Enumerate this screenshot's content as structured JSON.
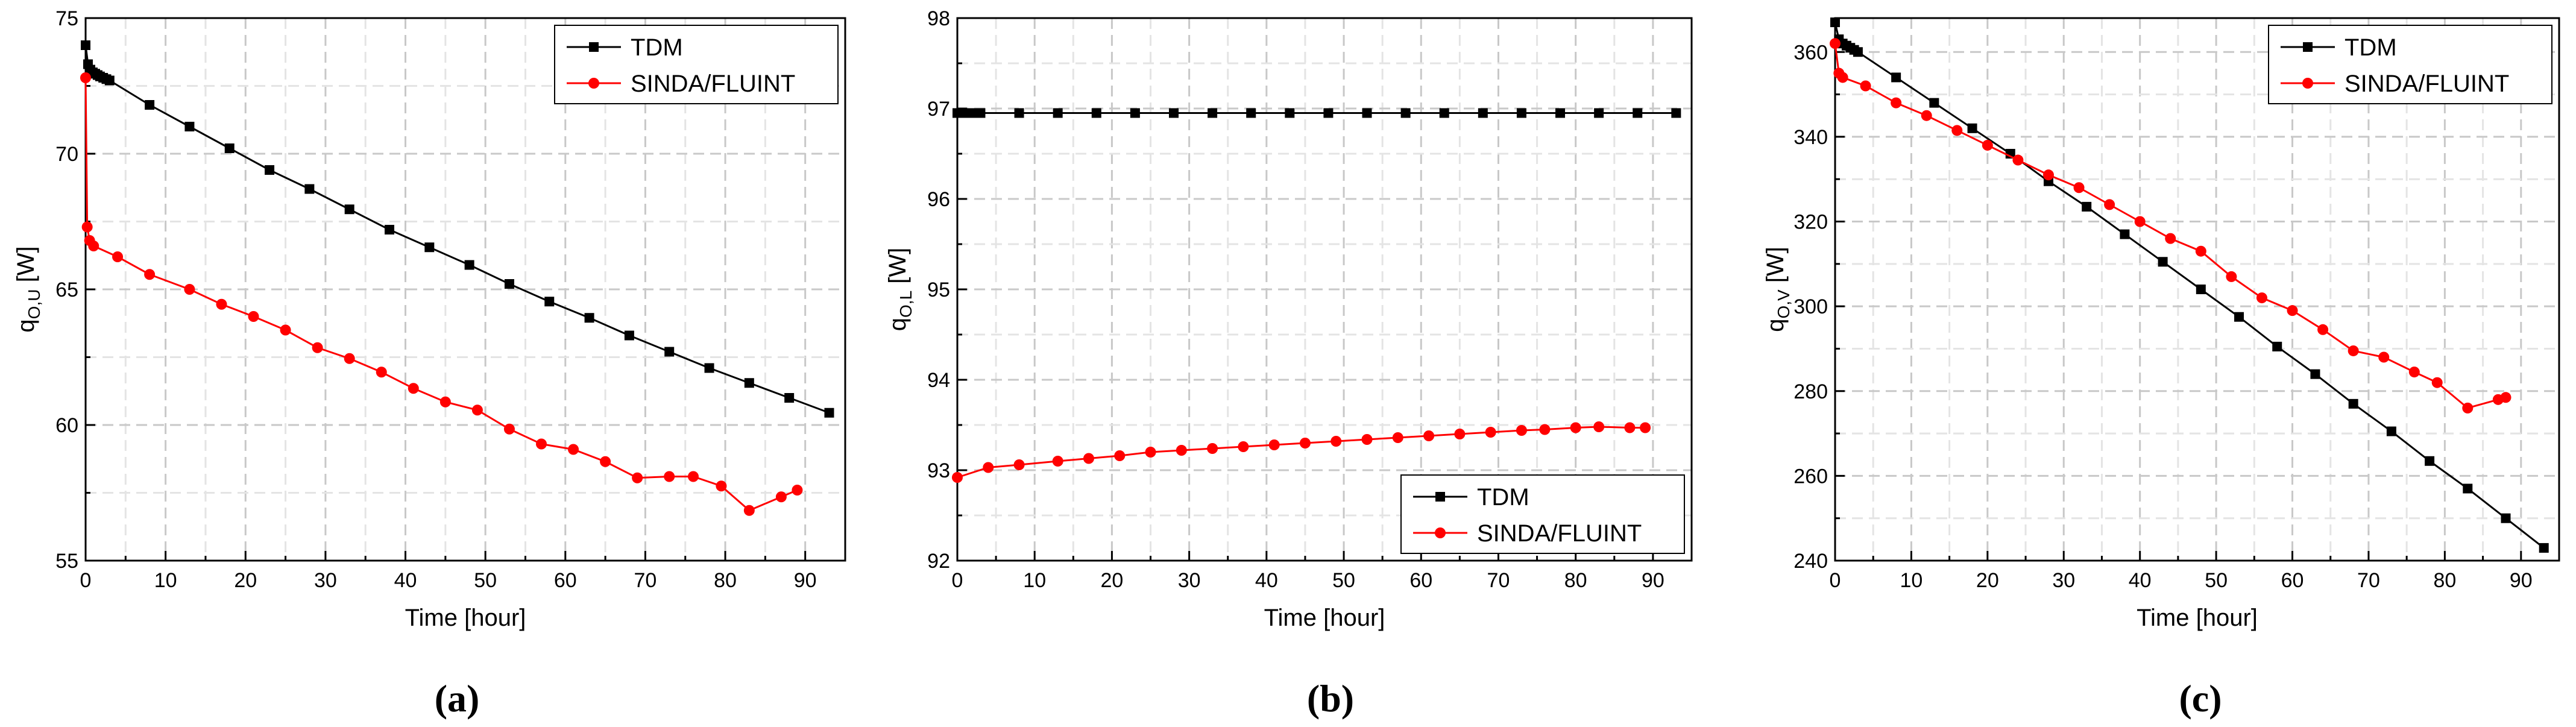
{
  "chart_data": [
    {
      "type": "line",
      "caption": "(a)",
      "xlabel": "Time [hour]",
      "ylabel_main": "q",
      "ylabel_sub": "O,U",
      "ylabel_unit": " [W]",
      "xlim": [
        0,
        95
      ],
      "ylim": [
        55,
        75
      ],
      "xticks": [
        0,
        10,
        20,
        30,
        40,
        50,
        60,
        70,
        80,
        90
      ],
      "yticks": [
        55,
        60,
        65,
        70,
        75
      ],
      "xtick_labels": [
        "0",
        "10",
        "20",
        "30",
        "40",
        "50",
        "60",
        "70",
        "80",
        "90"
      ],
      "ytick_labels": [
        "55",
        "60",
        "65",
        "70",
        "75"
      ],
      "legend": [
        "TDM",
        "SINDA/FLUINT"
      ],
      "legend_position": "top-right",
      "series": [
        {
          "name": "TDM",
          "color": "#000000",
          "marker": "square",
          "x": [
            0,
            0.3,
            0.6,
            0.9,
            1.2,
            1.5,
            1.8,
            2.2,
            2.6,
            3.0,
            8,
            13,
            18,
            23,
            28,
            33,
            38,
            43,
            48,
            53,
            58,
            63,
            68,
            73,
            78,
            83,
            88,
            93
          ],
          "y": [
            74.0,
            73.3,
            73.1,
            73.0,
            72.95,
            72.9,
            72.85,
            72.8,
            72.75,
            72.7,
            71.8,
            71.0,
            70.2,
            69.4,
            68.7,
            67.95,
            67.2,
            66.55,
            65.9,
            65.2,
            64.55,
            63.95,
            63.3,
            62.7,
            62.1,
            61.55,
            61.0,
            60.45
          ]
        },
        {
          "name": "SINDA/FLUINT",
          "color": "#ff0000",
          "marker": "circle",
          "x": [
            0,
            0.2,
            0.5,
            1,
            4,
            8,
            13,
            17,
            21,
            25,
            29,
            33,
            37,
            41,
            45,
            49,
            53,
            57,
            61,
            65,
            69,
            73,
            76,
            79.5,
            83,
            87,
            89
          ],
          "y": [
            72.8,
            67.3,
            66.8,
            66.6,
            66.2,
            65.55,
            65.0,
            64.45,
            64.0,
            63.5,
            62.85,
            62.45,
            61.95,
            61.35,
            60.85,
            60.55,
            59.85,
            59.3,
            59.1,
            58.65,
            58.05,
            58.1,
            58.1,
            57.75,
            56.85,
            57.35,
            57.6
          ]
        }
      ]
    },
    {
      "type": "line",
      "caption": "(b)",
      "xlabel": "Time [hour]",
      "ylabel_main": "q",
      "ylabel_sub": "O,L",
      "ylabel_unit": " [W]",
      "xlim": [
        0,
        95
      ],
      "ylim": [
        92,
        98
      ],
      "xticks": [
        0,
        10,
        20,
        30,
        40,
        50,
        60,
        70,
        80,
        90
      ],
      "yticks": [
        92,
        93,
        94,
        95,
        96,
        97,
        98
      ],
      "xtick_labels": [
        "0",
        "10",
        "20",
        "30",
        "40",
        "50",
        "60",
        "70",
        "80",
        "90"
      ],
      "ytick_labels": [
        "92",
        "93",
        "94",
        "95",
        "96",
        "97",
        "98"
      ],
      "legend": [
        "TDM",
        "SINDA/FLUINT"
      ],
      "legend_position": "bottom-right",
      "series": [
        {
          "name": "TDM",
          "color": "#000000",
          "marker": "square",
          "x": [
            0,
            0.5,
            1,
            1.5,
            2,
            2.5,
            3,
            8,
            13,
            18,
            23,
            28,
            33,
            38,
            43,
            48,
            53,
            58,
            63,
            68,
            73,
            78,
            83,
            88,
            93
          ],
          "y": [
            96.95,
            96.95,
            96.95,
            96.95,
            96.95,
            96.95,
            96.95,
            96.95,
            96.95,
            96.95,
            96.95,
            96.95,
            96.95,
            96.95,
            96.95,
            96.95,
            96.95,
            96.95,
            96.95,
            96.95,
            96.95,
            96.95,
            96.95,
            96.95,
            96.95
          ]
        },
        {
          "name": "SINDA/FLUINT",
          "color": "#ff0000",
          "marker": "circle",
          "x": [
            0,
            4,
            8,
            13,
            17,
            21,
            25,
            29,
            33,
            37,
            41,
            45,
            49,
            53,
            57,
            61,
            65,
            69,
            73,
            76,
            80,
            83,
            87,
            89
          ],
          "y": [
            92.92,
            93.03,
            93.06,
            93.1,
            93.13,
            93.16,
            93.2,
            93.22,
            93.24,
            93.26,
            93.28,
            93.3,
            93.32,
            93.34,
            93.36,
            93.38,
            93.4,
            93.42,
            93.44,
            93.45,
            93.47,
            93.48,
            93.47,
            93.47
          ]
        }
      ]
    },
    {
      "type": "line",
      "caption": "(c)",
      "xlabel": "Time [hour]",
      "ylabel_main": "q",
      "ylabel_sub": "O,V",
      "ylabel_unit": " [W]",
      "xlim": [
        0,
        95
      ],
      "ylim": [
        240,
        368
      ],
      "xticks": [
        0,
        10,
        20,
        30,
        40,
        50,
        60,
        70,
        80,
        90
      ],
      "yticks": [
        240,
        260,
        280,
        300,
        320,
        340,
        360
      ],
      "xtick_labels": [
        "0",
        "10",
        "20",
        "30",
        "40",
        "50",
        "60",
        "70",
        "80",
        "90"
      ],
      "ytick_labels": [
        "240",
        "260",
        "280",
        "300",
        "320",
        "340",
        "360"
      ],
      "legend": [
        "TDM",
        "SINDA/FLUINT"
      ],
      "legend_position": "top-right",
      "series": [
        {
          "name": "TDM",
          "color": "#000000",
          "marker": "square",
          "x": [
            0,
            0.5,
            1,
            1.5,
            2,
            2.5,
            3,
            8,
            13,
            18,
            23,
            28,
            33,
            38,
            43,
            48,
            53,
            58,
            63,
            68,
            73,
            78,
            83,
            88,
            93
          ],
          "y": [
            367,
            363,
            362,
            361.5,
            361,
            360.5,
            360,
            354,
            348,
            342,
            336,
            329.5,
            323.5,
            317,
            310.5,
            304,
            297.5,
            290.5,
            284,
            277,
            270.5,
            263.5,
            257,
            250,
            243
          ]
        },
        {
          "name": "SINDA/FLUINT",
          "color": "#ff0000",
          "marker": "circle",
          "x": [
            0,
            0.5,
            1,
            4,
            8,
            12,
            16,
            20,
            24,
            28,
            32,
            36,
            40,
            44,
            48,
            52,
            56,
            60,
            64,
            68,
            72,
            76,
            79,
            83,
            87,
            88
          ],
          "y": [
            362,
            355,
            354,
            352,
            348,
            345,
            341.5,
            338,
            334.5,
            331,
            328,
            324,
            320,
            316,
            313,
            307,
            302,
            299,
            294.5,
            289.5,
            288,
            284.5,
            282,
            276,
            278,
            278.5
          ]
        }
      ]
    }
  ]
}
